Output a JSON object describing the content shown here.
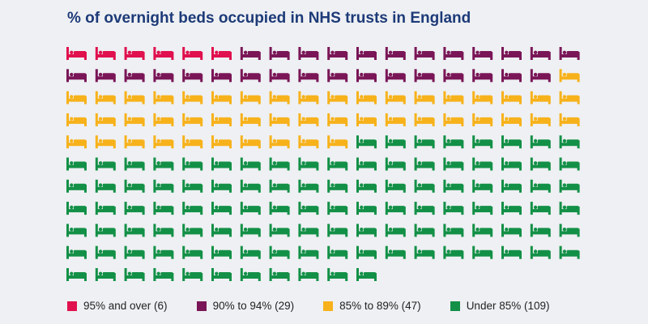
{
  "chart_data": {
    "type": "waffle",
    "title": "% of overnight beds occupied in NHS trusts in England",
    "unit": "trusts",
    "icon": "bed-icon",
    "columns": 18,
    "categories": [
      {
        "label": "95% and over (6)",
        "name": "95% and over",
        "value": 6,
        "color": "#e0114e"
      },
      {
        "label": "90% to 94% (29)",
        "name": "90% to 94%",
        "value": 29,
        "color": "#7a1657"
      },
      {
        "label": "85% to 89% (47)",
        "name": "85% to 89%",
        "value": 47,
        "color": "#f7b21b"
      },
      {
        "label": "Under 85% (109)",
        "name": "Under 85%",
        "value": 109,
        "color": "#139047"
      }
    ]
  }
}
